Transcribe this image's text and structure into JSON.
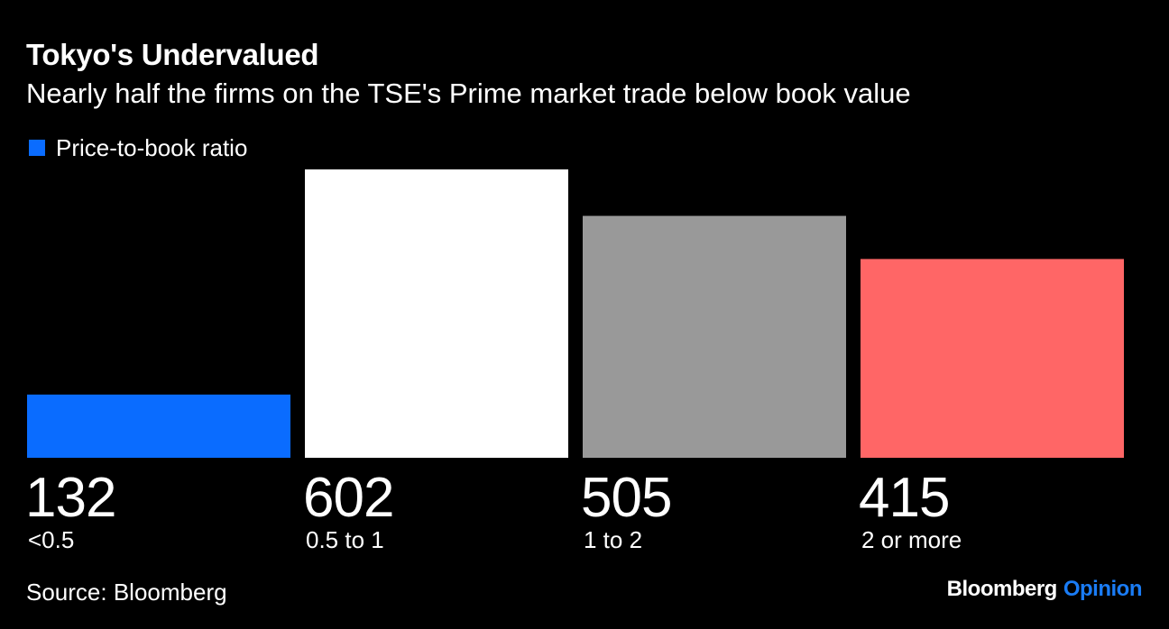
{
  "header": {
    "title": "Tokyo's Undervalued",
    "subtitle": "Nearly half the firms on the TSE's Prime market trade below book value"
  },
  "legend": {
    "label": "Price-to-book ratio",
    "color": "#0a6cff"
  },
  "chart_data": {
    "type": "bar",
    "categories": [
      "<0.5",
      "0.5 to 1",
      "1 to 2",
      "2 or more"
    ],
    "values": [
      132,
      602,
      505,
      415
    ],
    "value_labels": [
      "132",
      "602",
      "505",
      "415"
    ],
    "colors": [
      "#0a6cff",
      "#ffffff",
      "#999999",
      "#ff6666"
    ],
    "series": [
      {
        "name": "Price-to-book ratio",
        "values": [
          132,
          602,
          505,
          415
        ]
      }
    ],
    "ylim": [
      0,
      602
    ],
    "grid": false,
    "legend_position": "top-left"
  },
  "footer": {
    "source": "Source: Bloomberg",
    "brand_primary": "Bloomberg",
    "brand_secondary": "Opinion",
    "brand_secondary_color": "#1a7cf5"
  }
}
